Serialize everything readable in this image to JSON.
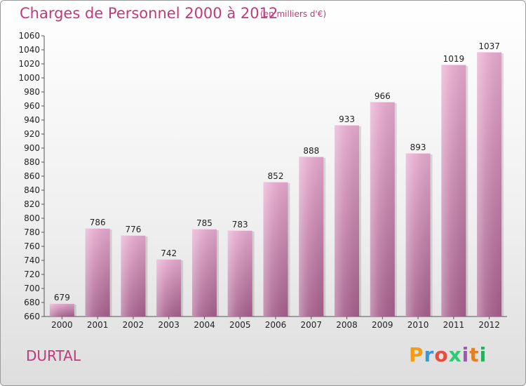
{
  "header": {
    "title": "Charges de Personnel 2000 à 2012",
    "subtitle": "(en milliers d'€)"
  },
  "footer": {
    "place": "DURTAL",
    "logo": "Proxiti"
  },
  "colors": {
    "title": "#c0397a",
    "bar_top": "#e3a6ca",
    "bar_bottom": "#a9638f",
    "logo": [
      "#f39c12",
      "#3498db",
      "#e74c3c",
      "#2ecc71",
      "#9b59b6",
      "#e67e22",
      "#27ae60"
    ]
  },
  "chart_data": {
    "type": "bar",
    "title": "Charges de Personnel 2000 à 2012",
    "subtitle": "(en milliers d'€)",
    "xlabel": "",
    "ylabel": "",
    "categories": [
      "2000",
      "2001",
      "2002",
      "2003",
      "2004",
      "2005",
      "2006",
      "2007",
      "2008",
      "2009",
      "2010",
      "2011",
      "2012"
    ],
    "values": [
      679,
      786,
      776,
      742,
      785,
      783,
      852,
      888,
      933,
      966,
      893,
      1019,
      1037
    ],
    "ylim": [
      660,
      1060
    ],
    "ytick_step": 20,
    "grid": false,
    "legend": "none"
  }
}
